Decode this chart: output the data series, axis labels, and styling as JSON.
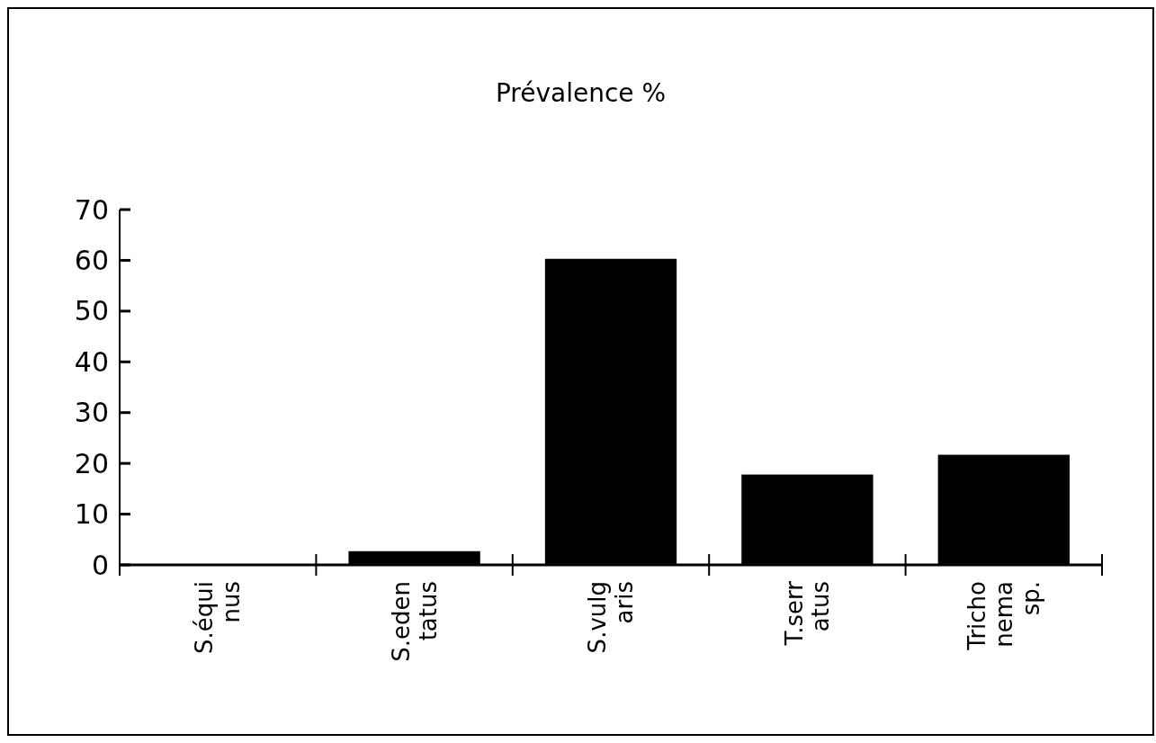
{
  "chart_data": {
    "type": "bar",
    "title": "Prévalence %",
    "categories": [
      "S.équi\nnus",
      "S.eden\ntatus",
      "S.vulg\naris",
      "T.serr\natus",
      "Tricho\nnema\nsp."
    ],
    "values": [
      0,
      2.7,
      60.3,
      17.8,
      21.7
    ],
    "color": "#000000",
    "ylim": [
      0,
      70
    ],
    "yticks": [
      0,
      10,
      20,
      30,
      40,
      50,
      60,
      70
    ],
    "grid": false
  }
}
